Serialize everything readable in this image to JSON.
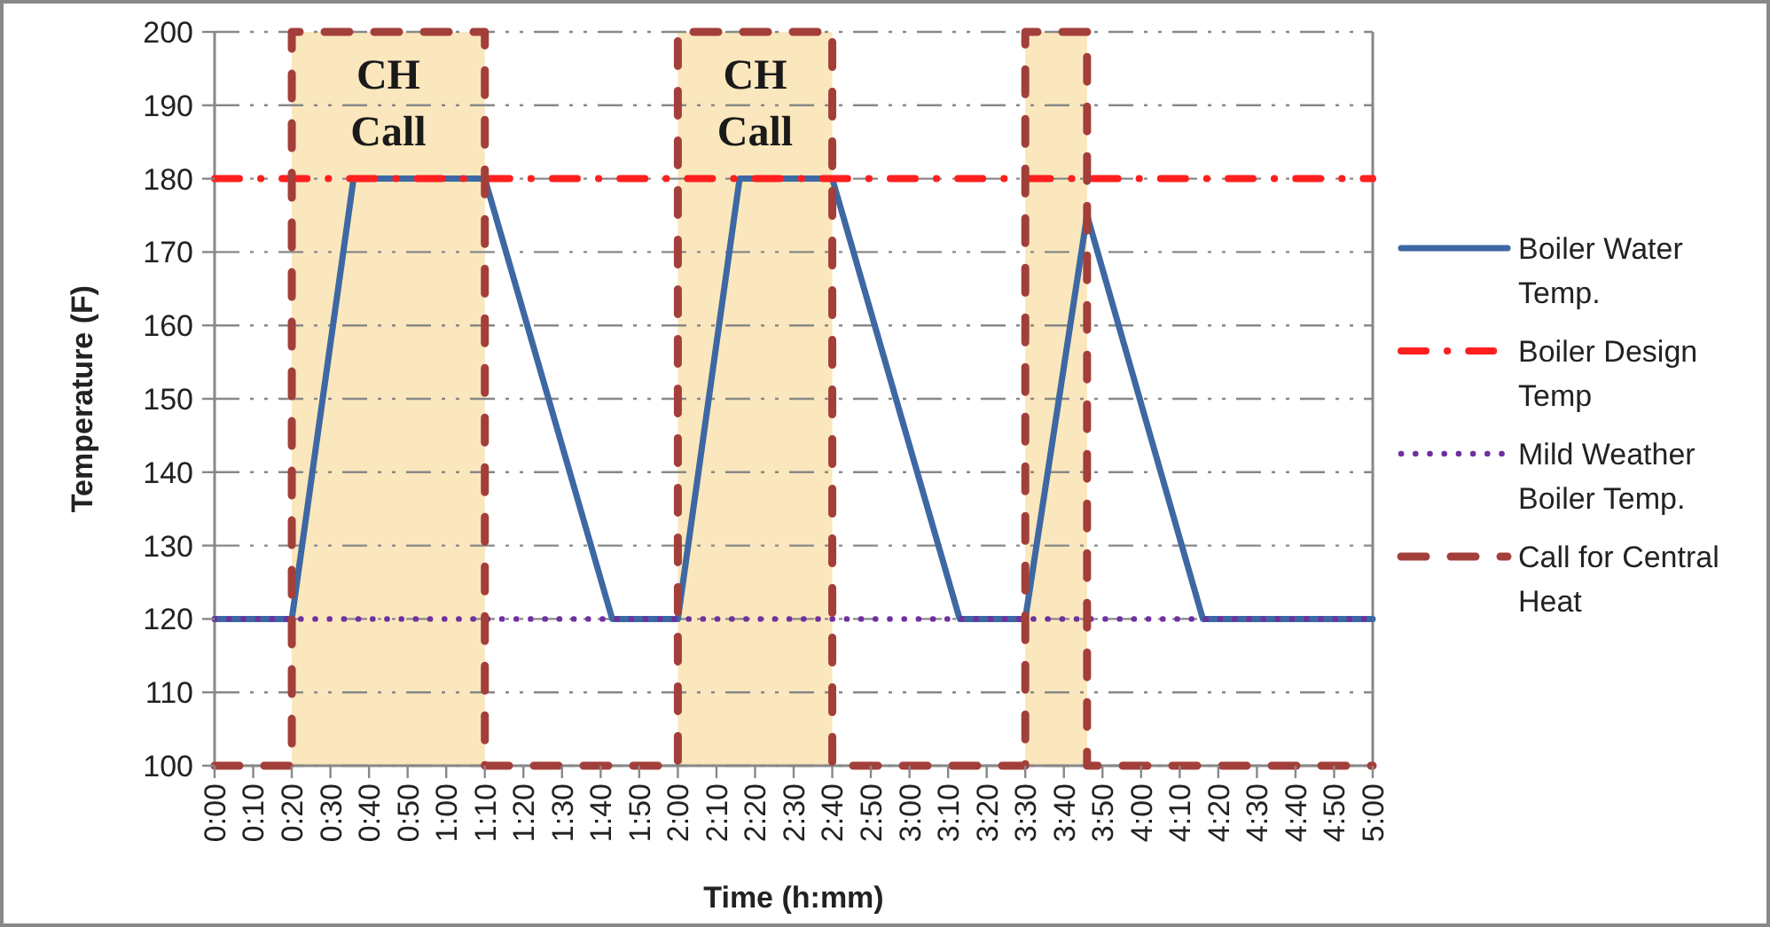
{
  "chart_data": {
    "type": "line",
    "xlabel": "Time (h:mm)",
    "ylabel": "Temperature (F)",
    "xlim": [
      0,
      5
    ],
    "ylim": [
      100,
      200
    ],
    "xticks": [
      {
        "value": 0,
        "label": "0:00"
      },
      {
        "value": 0.1667,
        "label": "0:10"
      },
      {
        "value": 0.3333,
        "label": "0:20"
      },
      {
        "value": 0.5,
        "label": "0:30"
      },
      {
        "value": 0.6667,
        "label": "0:40"
      },
      {
        "value": 0.8333,
        "label": "0:50"
      },
      {
        "value": 1,
        "label": "1:00"
      },
      {
        "value": 1.1667,
        "label": "1:10"
      },
      {
        "value": 1.3333,
        "label": "1:20"
      },
      {
        "value": 1.5,
        "label": "1:30"
      },
      {
        "value": 1.6667,
        "label": "1:40"
      },
      {
        "value": 1.8333,
        "label": "1:50"
      },
      {
        "value": 2,
        "label": "2:00"
      },
      {
        "value": 2.1667,
        "label": "2:10"
      },
      {
        "value": 2.3333,
        "label": "2:20"
      },
      {
        "value": 2.5,
        "label": "2:30"
      },
      {
        "value": 2.6667,
        "label": "2:40"
      },
      {
        "value": 2.8333,
        "label": "2:50"
      },
      {
        "value": 3,
        "label": "3:00"
      },
      {
        "value": 3.1667,
        "label": "3:10"
      },
      {
        "value": 3.3333,
        "label": "3:20"
      },
      {
        "value": 3.5,
        "label": "3:30"
      },
      {
        "value": 3.6667,
        "label": "3:40"
      },
      {
        "value": 3.8333,
        "label": "3:50"
      },
      {
        "value": 4,
        "label": "4:00"
      },
      {
        "value": 4.1667,
        "label": "4:10"
      },
      {
        "value": 4.3333,
        "label": "4:20"
      },
      {
        "value": 4.5,
        "label": "4:30"
      },
      {
        "value": 4.6667,
        "label": "4:40"
      },
      {
        "value": 4.8333,
        "label": "4:50"
      },
      {
        "value": 5,
        "label": "5:00"
      }
    ],
    "yticks": [
      100,
      110,
      120,
      130,
      140,
      150,
      160,
      170,
      180,
      190,
      200
    ],
    "grid": "y",
    "legend": "right",
    "bands": [
      {
        "axis": "x",
        "from": 0.3333,
        "to": 1.1667,
        "label": "CH Call",
        "color": "#fbe7bd"
      },
      {
        "axis": "x",
        "from": 2,
        "to": 2.6667,
        "label": "CH Call",
        "color": "#fbe7bd"
      },
      {
        "axis": "x",
        "from": 3.5,
        "to": 3.7667,
        "color": "#fbe7bd"
      }
    ],
    "series": [
      {
        "name": "Boiler Water Temp.",
        "color": "#3d68a3",
        "line_style": "solid",
        "x": [
          0,
          0.3333,
          0.6,
          1.1667,
          1.7167,
          2,
          2.2667,
          2.6667,
          3.2167,
          3.5,
          3.7667,
          4.2667,
          5
        ],
        "values": [
          120,
          120,
          180,
          180,
          120,
          120,
          180,
          180,
          120,
          120,
          175,
          120,
          120
        ]
      },
      {
        "name": "Boiler Design Temp",
        "color": "#ff1f1f",
        "line_style": "dashdot",
        "x": [
          0,
          5
        ],
        "values": [
          180,
          180
        ]
      },
      {
        "name": "Mild Weather Boiler Temp.",
        "color": "#7030a0",
        "line_style": "dotted",
        "x": [
          0,
          5
        ],
        "values": [
          120,
          120
        ]
      },
      {
        "name": "Call for Central Heat",
        "color": "#a33f3a",
        "line_style": "dashed",
        "x": [
          0,
          0.3333,
          0.3333,
          1.1667,
          1.1667,
          2,
          2,
          2.6667,
          2.6667,
          3.5,
          3.5,
          3.7667,
          3.7667,
          5
        ],
        "values": [
          100,
          100,
          200,
          200,
          100,
          100,
          200,
          200,
          100,
          100,
          200,
          200,
          100,
          100
        ]
      }
    ]
  }
}
